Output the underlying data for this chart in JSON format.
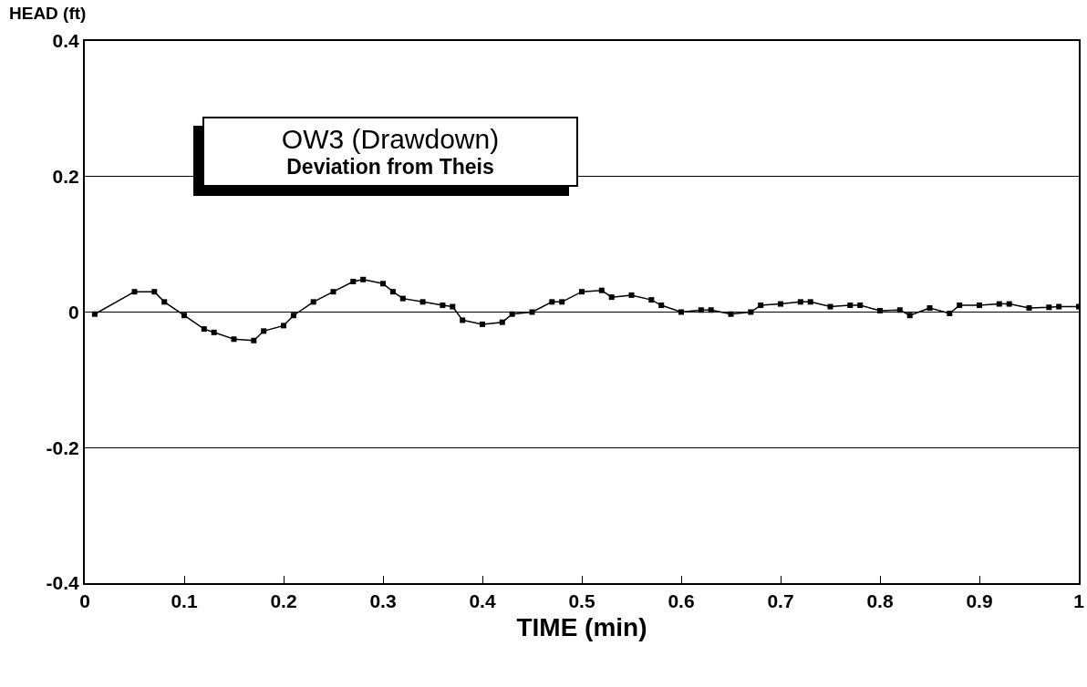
{
  "chart_data": {
    "type": "line",
    "title": "OW3 (Drawdown)",
    "subtitle": "Deviation from Theis",
    "xlabel": "TIME (min)",
    "ylabel": "HEAD (ft)",
    "x": [
      0.01,
      0.05,
      0.07,
      0.08,
      0.1,
      0.12,
      0.13,
      0.15,
      0.17,
      0.18,
      0.2,
      0.21,
      0.23,
      0.25,
      0.27,
      0.28,
      0.3,
      0.31,
      0.32,
      0.34,
      0.36,
      0.37,
      0.38,
      0.4,
      0.42,
      0.43,
      0.45,
      0.47,
      0.48,
      0.5,
      0.52,
      0.53,
      0.55,
      0.57,
      0.58,
      0.6,
      0.62,
      0.63,
      0.65,
      0.67,
      0.68,
      0.7,
      0.72,
      0.73,
      0.75,
      0.77,
      0.78,
      0.8,
      0.82,
      0.83,
      0.85,
      0.87,
      0.88,
      0.9,
      0.92,
      0.93,
      0.95,
      0.97,
      0.98,
      1.0
    ],
    "series": [
      {
        "color": "#000000",
        "values": [
          -0.003,
          0.03,
          0.03,
          0.015,
          -0.005,
          -0.025,
          -0.03,
          -0.04,
          -0.042,
          -0.028,
          -0.02,
          -0.005,
          0.015,
          0.03,
          0.045,
          0.048,
          0.042,
          0.03,
          0.02,
          0.015,
          0.01,
          0.008,
          -0.012,
          -0.018,
          -0.015,
          -0.003,
          0.0,
          0.015,
          0.015,
          0.03,
          0.032,
          0.022,
          0.025,
          0.018,
          0.01,
          0.0,
          0.003,
          0.003,
          -0.003,
          0.0,
          0.01,
          0.012,
          0.015,
          0.015,
          0.008,
          0.01,
          0.01,
          0.002,
          0.003,
          -0.005,
          0.006,
          -0.002,
          0.01,
          0.01,
          0.012,
          0.012,
          0.006,
          0.007,
          0.008,
          0.008
        ]
      }
    ],
    "xlim": [
      0,
      1
    ],
    "xticks": [
      0,
      0.1,
      0.2,
      0.3,
      0.4,
      0.5,
      0.6,
      0.7,
      0.8,
      0.9,
      1
    ],
    "ylim": [
      -0.4,
      0.4
    ],
    "yticks": [
      -0.4,
      -0.2,
      0,
      0.2,
      0.4
    ],
    "grid": "y",
    "marker": "square",
    "line_style": "solid"
  }
}
